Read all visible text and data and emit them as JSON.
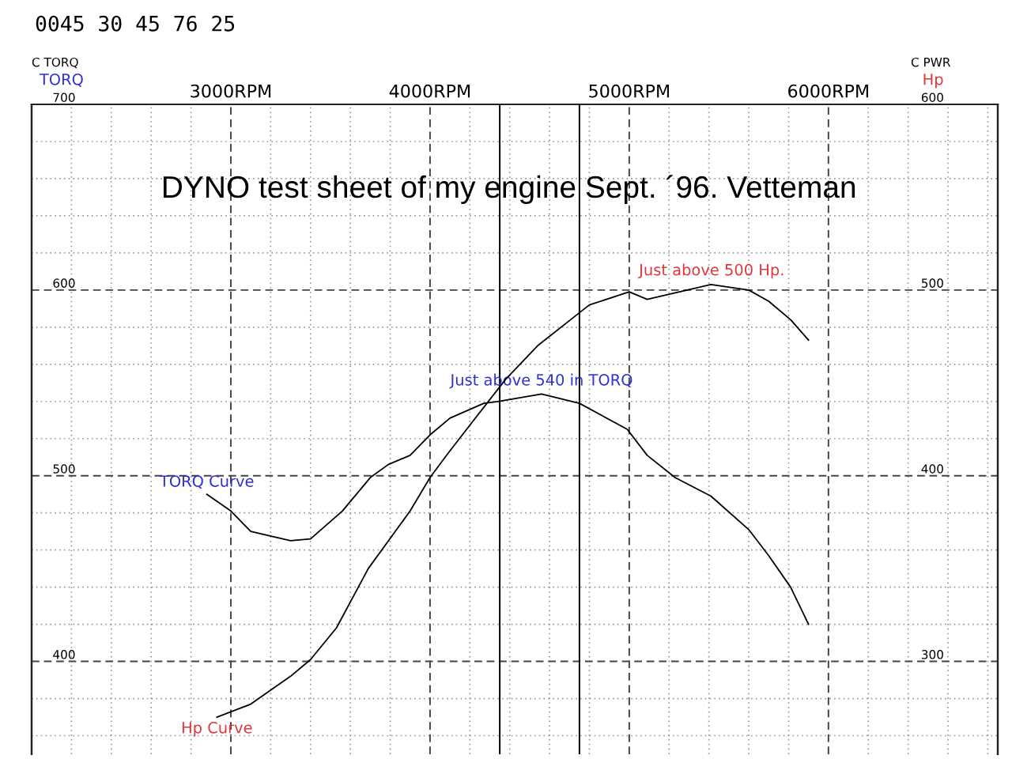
{
  "chart_data": {
    "type": "line",
    "title": "DYNO test sheet of my engine Sept. ´96. Vetteman",
    "ylabel": "TORQ",
    "y2label": "Hp",
    "annotations": [
      "0045 30 45 76 25",
      "C TORQ",
      "C PWR",
      "Just above 500 Hp.",
      {
        "text": "Just above 540 in TORQ",
        "x": 4560,
        "y": 544
      }
    ],
    "series": [
      {
        "name": "TORQ Curve",
        "color": "#000000",
        "x": [
          2880,
          3000,
          3100,
          3180,
          3300,
          3400,
          3560,
          3700,
          3790,
          3900,
          4000,
          4100,
          4270,
          4340,
          4560,
          4750,
          4990,
          5090,
          5230,
          5410,
          5600,
          5700,
          5810,
          5900
        ],
        "values": [
          490,
          481,
          470,
          468,
          465,
          466,
          481,
          499,
          506,
          511,
          522,
          531,
          539,
          540,
          544,
          539,
          525,
          511,
          499,
          489,
          471,
          457,
          440,
          420
        ]
      },
      {
        "name": "Hp Curve",
        "color": "#000000",
        "axis": "y2",
        "x": [
          2930,
          3100,
          3300,
          3400,
          3530,
          3690,
          3900,
          4000,
          4090,
          4220,
          4380,
          4540,
          4800,
          5000,
          5090,
          5410,
          5600,
          5700,
          5810,
          5900
        ],
        "values": [
          270,
          277,
          292,
          301,
          318,
          350,
          381,
          399,
          412,
          430,
          452,
          470,
          492,
          499,
          495,
          503,
          500,
          494,
          484,
          473
        ]
      }
    ],
    "xlim": [
      2000,
      6850
    ],
    "xticks": [
      {
        "value": 2200,
        "label": null
      },
      {
        "value": 2400,
        "label": null
      },
      {
        "value": 2600,
        "label": null
      },
      {
        "value": 2800,
        "label": null
      },
      {
        "value": 3000,
        "label": "3000RPM"
      },
      {
        "value": 3200,
        "label": null
      },
      {
        "value": 3400,
        "label": null
      },
      {
        "value": 3600,
        "label": null
      },
      {
        "value": 3800,
        "label": null
      },
      {
        "value": 4000,
        "label": "4000RPM"
      },
      {
        "value": 4200,
        "label": null
      },
      {
        "value": 4400,
        "label": null
      },
      {
        "value": 4600,
        "label": null
      },
      {
        "value": 4800,
        "label": null
      },
      {
        "value": 5000,
        "label": "5000RPM"
      },
      {
        "value": 5200,
        "label": null
      },
      {
        "value": 5400,
        "label": null
      },
      {
        "value": 5600,
        "label": null
      },
      {
        "value": 5800,
        "label": null
      },
      {
        "value": 6000,
        "label": "6000RPM"
      },
      {
        "value": 6200,
        "label": null
      },
      {
        "value": 6400,
        "label": null
      },
      {
        "value": 6600,
        "label": null
      },
      {
        "value": 6800,
        "label": null
      }
    ],
    "ylim": [
      350,
      700
    ],
    "yticks": [
      {
        "value": 360,
        "label": null
      },
      {
        "value": 380,
        "label": null
      },
      400,
      {
        "value": 420,
        "label": null
      },
      {
        "value": 440,
        "label": null
      },
      {
        "value": 460,
        "label": null
      },
      {
        "value": 480,
        "label": null
      },
      500,
      {
        "value": 520,
        "label": null
      },
      {
        "value": 540,
        "label": null
      },
      {
        "value": 560,
        "label": null
      },
      {
        "value": 580,
        "label": null
      },
      600,
      {
        "value": 620,
        "label": null
      },
      {
        "value": 640,
        "label": null
      },
      {
        "value": 660,
        "label": null
      },
      {
        "value": 680,
        "label": null
      },
      700
    ],
    "y2lim": [
      250,
      600
    ],
    "y2ticks": [
      300,
      400,
      500,
      600
    ],
    "ref_lines": [
      {
        "axis": "x",
        "value": 4350,
        "color": "#000000",
        "line_style": "solid"
      },
      {
        "axis": "x",
        "value": 4750,
        "color": "#000000",
        "line_style": "solid"
      }
    ],
    "grid": true
  }
}
